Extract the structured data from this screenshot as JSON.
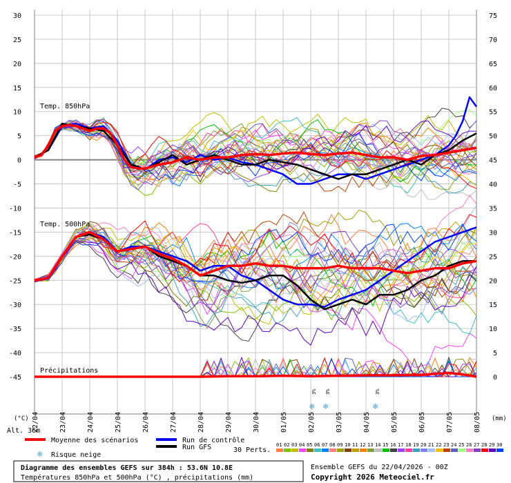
{
  "chart_data": {
    "type": "line",
    "x_dates": [
      "22/04",
      "23/04",
      "24/04",
      "25/04",
      "26/04",
      "27/04",
      "28/04",
      "29/04",
      "30/04",
      "01/05",
      "02/05",
      "03/05",
      "04/05",
      "05/05",
      "06/05",
      "07/05",
      "08/05"
    ],
    "left_axis": {
      "unit_label": "(°C)",
      "ticks": [
        30,
        25,
        20,
        15,
        10,
        5,
        0,
        -5,
        -10,
        -15,
        -20,
        -25,
        -30,
        -35,
        -40,
        -45
      ],
      "range": [
        -45,
        30
      ]
    },
    "right_axis": {
      "unit_label": "(mm)",
      "ticks": [
        75,
        70,
        65,
        60,
        55,
        50,
        45,
        40,
        35,
        30,
        25,
        20,
        15,
        10,
        5,
        0
      ]
    },
    "alt_label": "Alt. 36m",
    "panels": [
      {
        "label": "Temp. 850hPa",
        "unit": "°C"
      },
      {
        "label": "Temp. 500hPa",
        "unit": "°C"
      },
      {
        "label": "Précipitations",
        "unit": "mm"
      }
    ],
    "series": [
      {
        "name": "Moyenne des scénarios",
        "color": "#ff0000",
        "panel": "t850",
        "x": [
          0,
          0.25,
          0.5,
          0.75,
          1,
          1.25,
          1.5,
          1.75,
          2,
          2.25,
          2.5,
          2.75,
          3,
          3.25,
          3.5,
          3.75,
          4,
          4.5,
          5,
          5.5,
          6,
          6.5,
          7,
          7.5,
          8,
          8.5,
          9,
          9.5,
          10,
          10.5,
          11,
          11.5,
          12,
          12.5,
          13,
          13.5,
          14,
          14.5,
          15,
          15.5,
          16
        ],
        "values": [
          0.5,
          1,
          3,
          6,
          7,
          7.2,
          7,
          6.5,
          6,
          6.5,
          6.5,
          5.5,
          3,
          0,
          -1.5,
          -1.8,
          -1.8,
          -1,
          -0.5,
          0.5,
          0,
          0.5,
          0.5,
          1,
          1.2,
          1,
          1.3,
          1.5,
          1.2,
          1,
          1.3,
          1.5,
          1,
          0.5,
          0.5,
          0,
          0.8,
          1,
          1.5,
          2,
          2.5
        ]
      },
      {
        "name": "Run de contrôle",
        "color": "#0000ff",
        "panel": "t850",
        "x": [
          0,
          0.5,
          1,
          1.5,
          2,
          2.5,
          3,
          3.5,
          4,
          4.5,
          5,
          5.5,
          6,
          6.5,
          7,
          7.5,
          8,
          8.5,
          9,
          9.5,
          10,
          10.5,
          11,
          11.5,
          12,
          12.5,
          13,
          13.5,
          14,
          14.5,
          15,
          15.25,
          15.5,
          15.75,
          16
        ],
        "values": [
          0.5,
          2,
          7,
          7.5,
          6.5,
          7,
          4,
          -1,
          -2,
          0,
          0.5,
          -0.5,
          1,
          0,
          0.5,
          -0.5,
          -1,
          -2,
          -3,
          -5,
          -5,
          -4,
          -3,
          -3,
          -4,
          -3,
          -2,
          -1,
          0,
          1,
          3,
          5,
          8,
          13,
          11
        ]
      },
      {
        "name": "Run GFS",
        "color": "#000000",
        "panel": "t850",
        "x": [
          0,
          0.5,
          1,
          1.5,
          2,
          2.5,
          3,
          3.5,
          4,
          4.5,
          5,
          5.5,
          6,
          6.5,
          7,
          7.5,
          8,
          8.5,
          9,
          9.5,
          10,
          10.5,
          11,
          11.5,
          12,
          12.5,
          13,
          13.5,
          14,
          14.5,
          15,
          15.5,
          16
        ],
        "values": [
          0.5,
          2,
          7.5,
          7,
          6.5,
          6,
          3,
          -1,
          -2,
          -0.5,
          1,
          -1,
          0,
          1,
          0,
          -1,
          -1,
          0,
          -0.5,
          -1,
          -2,
          -3,
          -4,
          -3,
          -3,
          -2,
          -1,
          0,
          -1,
          1,
          2,
          4,
          5.5
        ]
      },
      {
        "name": "Moyenne des scénarios",
        "color": "#ff0000",
        "panel": "t500",
        "x": [
          0,
          0.5,
          1,
          1.5,
          2,
          2.5,
          3,
          3.5,
          4,
          4.5,
          5,
          5.5,
          6,
          6.5,
          7,
          7.5,
          8,
          8.5,
          9,
          9.5,
          10,
          10.5,
          11,
          11.5,
          12,
          12.5,
          13,
          13.5,
          14,
          14.5,
          15,
          15.5,
          16
        ],
        "values": [
          -25,
          -24.5,
          -20,
          -16,
          -15,
          -16.5,
          -19,
          -18.5,
          -18,
          -19.5,
          -20.5,
          -22,
          -24,
          -23,
          -22,
          -22,
          -21.5,
          -22,
          -22,
          -22.5,
          -22.5,
          -22.5,
          -22,
          -22.5,
          -22.5,
          -22.5,
          -23,
          -23.5,
          -23,
          -22.5,
          -22.5,
          -21.5,
          -21
        ]
      },
      {
        "name": "Run de contrôle",
        "color": "#0000ff",
        "panel": "t500",
        "x": [
          0,
          0.5,
          1,
          1.5,
          2,
          2.5,
          3,
          3.5,
          4,
          4.5,
          5,
          5.5,
          6,
          6.5,
          7,
          7.5,
          8,
          8.5,
          9,
          9.5,
          10,
          10.5,
          11,
          11.5,
          12,
          12.5,
          13,
          13.5,
          14,
          14.5,
          15,
          15.5,
          16
        ],
        "values": [
          -25,
          -24.5,
          -20,
          -16,
          -15,
          -16,
          -19,
          -18,
          -18,
          -19,
          -20,
          -21,
          -23,
          -22,
          -22,
          -24,
          -25,
          -27,
          -29,
          -30,
          -30,
          -30.5,
          -29,
          -28,
          -27,
          -25,
          -23,
          -21,
          -19,
          -17,
          -16,
          -15,
          -14
        ]
      },
      {
        "name": "Run GFS",
        "color": "#000000",
        "panel": "t500",
        "x": [
          0,
          0.5,
          1,
          1.5,
          2,
          2.5,
          3,
          3.5,
          4,
          4.5,
          5,
          5.5,
          6,
          6.5,
          7,
          7.5,
          8,
          8.5,
          9,
          9.5,
          10,
          10.5,
          11,
          11.5,
          12,
          12.5,
          13,
          13.5,
          14,
          14.5,
          15,
          15.5,
          16
        ],
        "values": [
          -25,
          -24.5,
          -20,
          -16,
          -15.5,
          -16.5,
          -19,
          -18.5,
          -18,
          -20,
          -21,
          -22,
          -24,
          -24,
          -25,
          -25.5,
          -25,
          -24,
          -24,
          -26,
          -29,
          -31,
          -30,
          -29,
          -30,
          -28,
          -28,
          -27,
          -25,
          -24,
          -22,
          -21,
          -21
        ]
      },
      {
        "name": "Moyenne des scénarios",
        "color": "#ff0000",
        "panel": "precip",
        "x": [
          0,
          1,
          2,
          3,
          4,
          5,
          6,
          7,
          8,
          9,
          10,
          11,
          12,
          13,
          14,
          14.5,
          15,
          15.5,
          16
        ],
        "values": [
          0,
          0,
          0,
          0,
          0,
          0,
          0,
          0.1,
          0.1,
          0.2,
          0.1,
          0.2,
          0.3,
          0.3,
          0.4,
          0.6,
          0.8,
          0.5,
          0
        ]
      }
    ],
    "members_label": "30 Perts.",
    "members": [
      "01",
      "02",
      "03",
      "04",
      "05",
      "06",
      "07",
      "08",
      "09",
      "10",
      "11",
      "12",
      "13",
      "14",
      "15",
      "16",
      "17",
      "18",
      "19",
      "20",
      "21",
      "22",
      "23",
      "24",
      "25",
      "26",
      "27",
      "28",
      "29",
      "30"
    ],
    "member_colors": [
      "#ff8040",
      "#80c000",
      "#c0c000",
      "#ff40ff",
      "#808000",
      "#40c0c0",
      "#0080ff",
      "#ff8080",
      "#a0a000",
      "#804000",
      "#c0a000",
      "#ff8000",
      "#80a040",
      "#c0c0c0",
      "#00c000",
      "#404040",
      "#a040ff",
      "#ff40a0",
      "#40a0c0",
      "#8080ff",
      "#a0c0ff",
      "#ffc000",
      "#c04000",
      "#6060c0",
      "#a0ff80",
      "#ff80c0",
      "#8040c0",
      "#ff0000",
      "#6000c0",
      "#0040ff"
    ],
    "snow_risk": [
      {
        "x": 10.1,
        "label": "3%"
      },
      {
        "x": 10.6,
        "label": "3%"
      },
      {
        "x": 12.4,
        "label": "3%"
      }
    ],
    "legend": {
      "mean": "Moyenne des scénarios",
      "control": "Run de contrôle",
      "gfs": "Run GFS",
      "snow": "Risque neige"
    }
  },
  "footer": {
    "title": "Diagramme des ensembles GEFS sur 384h : 53.6N 10.8E",
    "subtitle": "Températures 850hPa et 500hPa (°C) , précipitations (mm)",
    "run": "Ensemble GEFS du 22/04/2026 - 00Z",
    "copyright": "Copyright 2026 Meteociel.fr"
  }
}
